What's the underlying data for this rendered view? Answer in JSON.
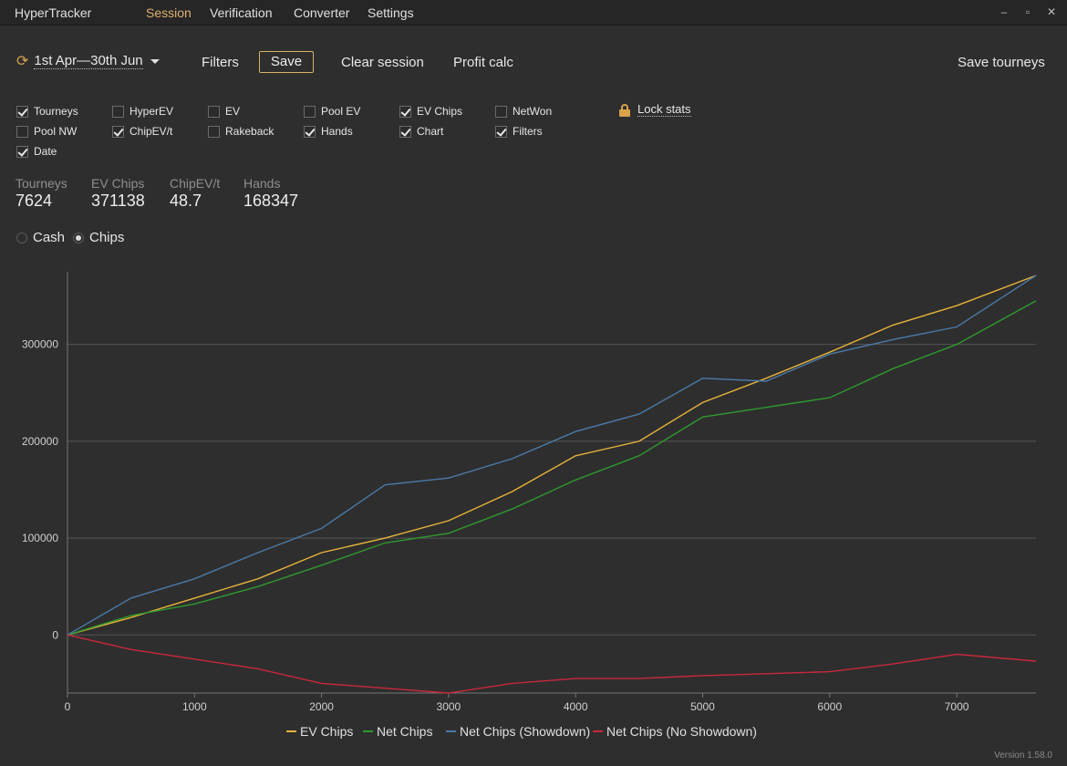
{
  "app": {
    "name": "HyperTracker",
    "version": "Version 1.58.0"
  },
  "menu": [
    {
      "label": "Session",
      "active": true
    },
    {
      "label": "Verification",
      "active": false
    },
    {
      "label": "Converter",
      "active": false
    },
    {
      "label": "Settings",
      "active": false
    }
  ],
  "window_buttons": {
    "minimize": "–",
    "maximize": "▫",
    "close": "✕"
  },
  "toolbar": {
    "date_range": "1st Apr—30th Jun",
    "filters": "Filters",
    "save": "Save",
    "clear_session": "Clear session",
    "profit_calc": "Profit calc",
    "save_tourneys": "Save tourneys"
  },
  "columns": [
    {
      "label": "Tourneys",
      "checked": true
    },
    {
      "label": "HyperEV",
      "checked": false
    },
    {
      "label": "EV",
      "checked": false
    },
    {
      "label": "Pool EV",
      "checked": false
    },
    {
      "label": "EV Chips",
      "checked": true
    },
    {
      "label": "NetWon",
      "checked": false
    },
    {
      "label": "Pool NW",
      "checked": false
    },
    {
      "label": "ChipEV/t",
      "checked": true
    },
    {
      "label": "Rakeback",
      "checked": false
    },
    {
      "label": "Hands",
      "checked": true
    },
    {
      "label": "Chart",
      "checked": true
    },
    {
      "label": "Filters",
      "checked": true
    },
    {
      "label": "Date",
      "checked": true
    }
  ],
  "lock_stats": "Lock stats",
  "stats": [
    {
      "name": "Tourneys",
      "value": "7624"
    },
    {
      "name": "EV Chips",
      "value": "371138"
    },
    {
      "name": "ChipEV/t",
      "value": "48.7"
    },
    {
      "name": "Hands",
      "value": "168347"
    }
  ],
  "mode": [
    {
      "label": "Cash",
      "selected": false
    },
    {
      "label": "Chips",
      "selected": true
    }
  ],
  "colors": {
    "accent": "#e0b070",
    "ev_chips": "#e8b339",
    "net_chips": "#2e9a2e",
    "net_showdown": "#4a7aa8",
    "net_no_showdown": "#c8283c"
  },
  "chart_data": {
    "type": "line",
    "title": "",
    "xlabel": "",
    "ylabel": "",
    "xlim": [
      0,
      7624
    ],
    "ylim": [
      -60000,
      375000
    ],
    "x_ticks": [
      0,
      1000,
      2000,
      3000,
      4000,
      5000,
      6000,
      7000
    ],
    "y_ticks": [
      0,
      100000,
      200000,
      300000
    ],
    "grid": true,
    "legend_position": "bottom",
    "series": [
      {
        "name": "EV Chips",
        "color": "#e8b339",
        "x": [
          0,
          500,
          1000,
          1500,
          2000,
          2500,
          3000,
          3500,
          4000,
          4500,
          5000,
          5500,
          6000,
          6500,
          7000,
          7624
        ],
        "y": [
          0,
          18000,
          38000,
          58000,
          85000,
          100000,
          118000,
          148000,
          185000,
          200000,
          240000,
          265000,
          292000,
          320000,
          340000,
          371138
        ]
      },
      {
        "name": "Net Chips",
        "color": "#2e9a2e",
        "x": [
          0,
          500,
          1000,
          1500,
          2000,
          2500,
          3000,
          3500,
          4000,
          4500,
          5000,
          5500,
          6000,
          6500,
          7000,
          7624
        ],
        "y": [
          0,
          20000,
          32000,
          50000,
          72000,
          95000,
          105000,
          130000,
          160000,
          185000,
          225000,
          235000,
          245000,
          275000,
          300000,
          345000
        ]
      },
      {
        "name": "Net Chips (Showdown)",
        "color": "#4a7aa8",
        "x": [
          0,
          500,
          1000,
          1500,
          2000,
          2500,
          3000,
          3500,
          4000,
          4500,
          5000,
          5500,
          6000,
          6500,
          7000,
          7624
        ],
        "y": [
          0,
          38000,
          58000,
          85000,
          110000,
          155000,
          162000,
          182000,
          210000,
          228000,
          265000,
          262000,
          290000,
          305000,
          318000,
          371138
        ]
      },
      {
        "name": "Net Chips (No Showdown)",
        "color": "#c8283c",
        "x": [
          0,
          500,
          1000,
          1500,
          2000,
          2500,
          3000,
          3500,
          4000,
          4500,
          5000,
          5500,
          6000,
          6500,
          7000,
          7624
        ],
        "y": [
          0,
          -15000,
          -25000,
          -35000,
          -50000,
          -55000,
          -60000,
          -50000,
          -45000,
          -45000,
          -42000,
          -40000,
          -38000,
          -30000,
          -20000,
          -27000
        ]
      }
    ]
  }
}
